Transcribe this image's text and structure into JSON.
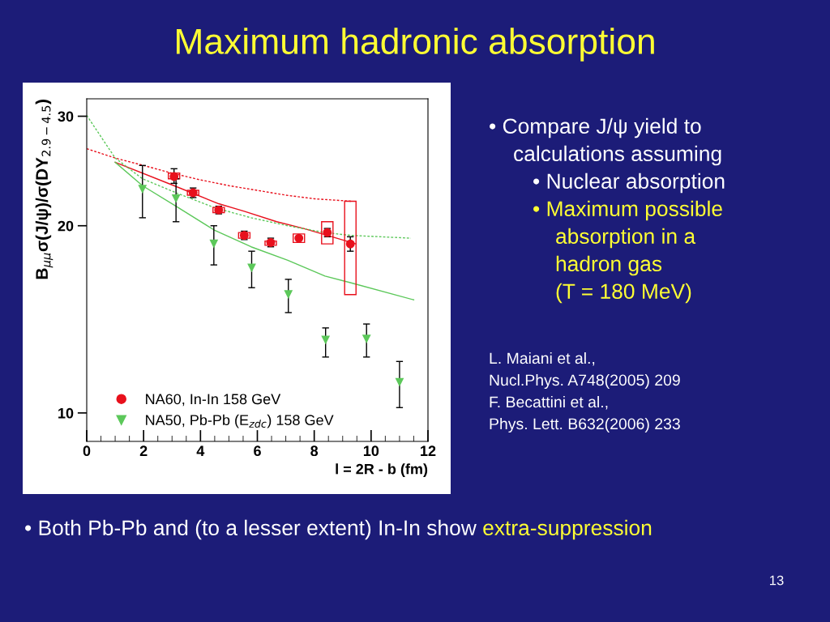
{
  "chart_data": {
    "type": "scatter",
    "title": "Maximum hadronic absorption",
    "xlabel": "l = 2R - b (fm)",
    "ylabel": "B$_{μμ}$σ(J/ψ)/σ(DY$_{2.9−4.5}$)",
    "xlim": [
      0,
      12
    ],
    "xticks": [
      0,
      2,
      4,
      6,
      8,
      10,
      12
    ],
    "ylim": [
      9.0,
      32
    ],
    "yticks": [
      10,
      20,
      30
    ],
    "log": "y",
    "grid": false,
    "legend": "bottom left",
    "series": [
      {
        "type": "line",
        "color": "#e8101c",
        "line_style": "dashed",
        "marker": "none",
        "x": [
          0,
          1,
          2,
          3,
          4,
          5,
          6,
          7,
          8,
          9.3
        ],
        "values": [
          26.6,
          25.7,
          25.0,
          24.3,
          23.7,
          23.2,
          22.8,
          22.4,
          22.1,
          21.9
        ]
      },
      {
        "type": "line",
        "color": "#e8101c",
        "line_style": "solid",
        "marker": "none",
        "x": [
          1.0,
          3.07,
          4.64,
          5.54,
          6.68,
          7.63,
          8.46,
          9.47
        ],
        "values": [
          25.3,
          23.2,
          21.7,
          21.1,
          20.3,
          19.8,
          19.3,
          18.7
        ]
      },
      {
        "type": "line",
        "color": "#5cc85a",
        "line_style": "dashed",
        "marker": "none",
        "x": [
          0,
          1.0,
          1.96,
          3.14,
          4.47,
          5.78,
          7.07,
          8.38,
          9.27,
          11.4
        ],
        "values": [
          30.1,
          25.7,
          23.8,
          22.6,
          21.4,
          20.6,
          20.0,
          19.5,
          19.3,
          19.1
        ]
      },
      {
        "type": "line",
        "color": "#5cc85a",
        "line_style": "solid",
        "marker": "none",
        "x": [
          1.0,
          1.96,
          3.14,
          4.47,
          5.78,
          7.07,
          8.38,
          9.27,
          11.5
        ],
        "values": [
          25.3,
          23.2,
          21.5,
          19.7,
          18.5,
          17.6,
          16.6,
          16.2,
          15.2
        ]
      },
      {
        "type": "bar",
        "color": "#e8101c",
        "x": [
          3.07,
          3.74,
          4.64,
          5.54,
          6.47,
          7.46,
          8.46,
          9.27
        ],
        "base": [
          23.8,
          22.4,
          21.0,
          19.1,
          18.6,
          18.8,
          18.7,
          15.5
        ],
        "values": [
          0.5,
          0.4,
          0.4,
          0.4,
          0.3,
          0.6,
          1.6,
          6.4
        ]
      },
      {
        "name": "NA60, In-In 158 GeV",
        "color": "#e8101c",
        "marker": "circle",
        "x": [
          3.07,
          3.74,
          4.64,
          5.54,
          6.47,
          7.46,
          8.46,
          9.27
        ],
        "values": [
          24.0,
          22.6,
          21.2,
          19.3,
          18.8,
          19.1,
          19.5,
          18.7
        ],
        "errors": [
          [
            23.4,
            24.7
          ],
          [
            22.2,
            23.0
          ],
          [
            20.9,
            21.5
          ],
          [
            19.0,
            19.6
          ],
          [
            18.5,
            19.1
          ],
          null,
          [
            19.2,
            19.8
          ],
          [
            18.2,
            19.2
          ]
        ]
      },
      {
        "name": "NA50, Pb-Pb (E$_{zdc}$) 158 GeV",
        "color": "#5cc85a",
        "marker": "triangle",
        "x": [
          1.96,
          3.14,
          4.47,
          5.8,
          7.09,
          8.4,
          9.84,
          11.0
        ],
        "values": [
          22.9,
          22.1,
          18.7,
          17.1,
          15.5,
          13.1,
          13.15,
          11.2
        ],
        "errors": [
          [
            20.6,
            25.0
          ],
          [
            20.3,
            23.8
          ],
          [
            17.3,
            20.0
          ],
          [
            15.9,
            18.2
          ],
          [
            14.5,
            16.4
          ],
          [
            12.3,
            13.7
          ],
          [
            12.3,
            13.9
          ],
          [
            10.2,
            12.1
          ]
        ]
      }
    ],
    "annotations": [
      "• Compare J/ψ yield to",
      "calculations assuming",
      "• Nuclear absorption",
      "• Maximum possible",
      "absorption in a",
      "hadron gas",
      "(T = 180 MeV)",
      "L. Maiani et al.,",
      "Nucl.Phys. A748(2005) 209",
      "F. Becattini et al.,",
      "Phys. Lett. B632(2006) 233",
      "• Both Pb-Pb and (to a lesser extent) In-In show",
      "extra-suppression",
      "13"
    ]
  }
}
